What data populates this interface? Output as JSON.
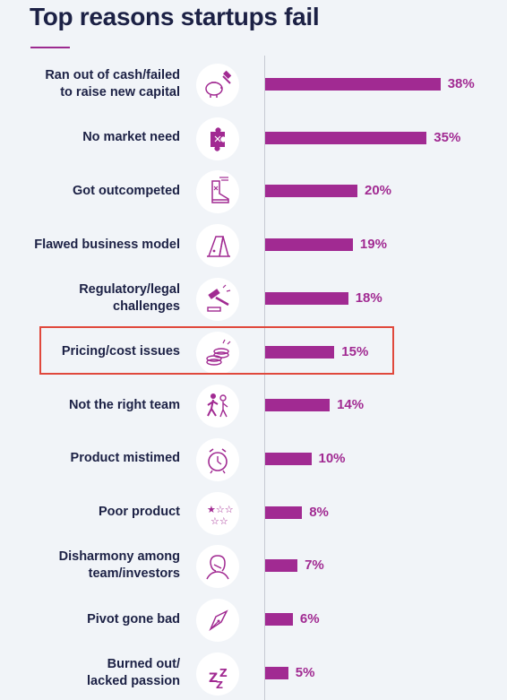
{
  "chart_data": {
    "type": "bar",
    "orientation": "horizontal",
    "title": "Top reasons startups fail",
    "categories": [
      "Ran out of cash/failed\nto raise new capital",
      "No market need",
      "Got outcompeted",
      "Flawed business model",
      "Regulatory/legal\nchallenges",
      "Pricing/cost issues",
      "Not the right team",
      "Product mistimed",
      "Poor product",
      "Disharmony among\nteam/investors",
      "Pivot gone bad",
      "Burned out/\nlacked passion"
    ],
    "values": [
      38,
      35,
      20,
      19,
      18,
      15,
      14,
      10,
      8,
      7,
      6,
      5
    ],
    "value_labels": [
      "38%",
      "35%",
      "20%",
      "19%",
      "18%",
      "15%",
      "14%",
      "10%",
      "8%",
      "7%",
      "6%",
      "5%"
    ],
    "icons": [
      "piggy-bank-hammer-icon",
      "puzzle-piece-icon",
      "sneaker-icon",
      "house-of-cards-icon",
      "gavel-icon",
      "coin-stack-icon",
      "walking-people-icon",
      "alarm-clock-icon",
      "star-rating-icon",
      "frustrated-person-icon",
      "pen-nib-icon",
      "sleep-zzz-icon"
    ],
    "highlighted_category": "Pricing/cost issues",
    "xlim": [
      0,
      40
    ],
    "grid": false,
    "legend": "none"
  },
  "colors": {
    "bar": "#a12a92",
    "value_text": "#a12a92",
    "label_text": "#1c2145",
    "highlight_border": "#e0483c",
    "background": "#f1f4f8"
  }
}
